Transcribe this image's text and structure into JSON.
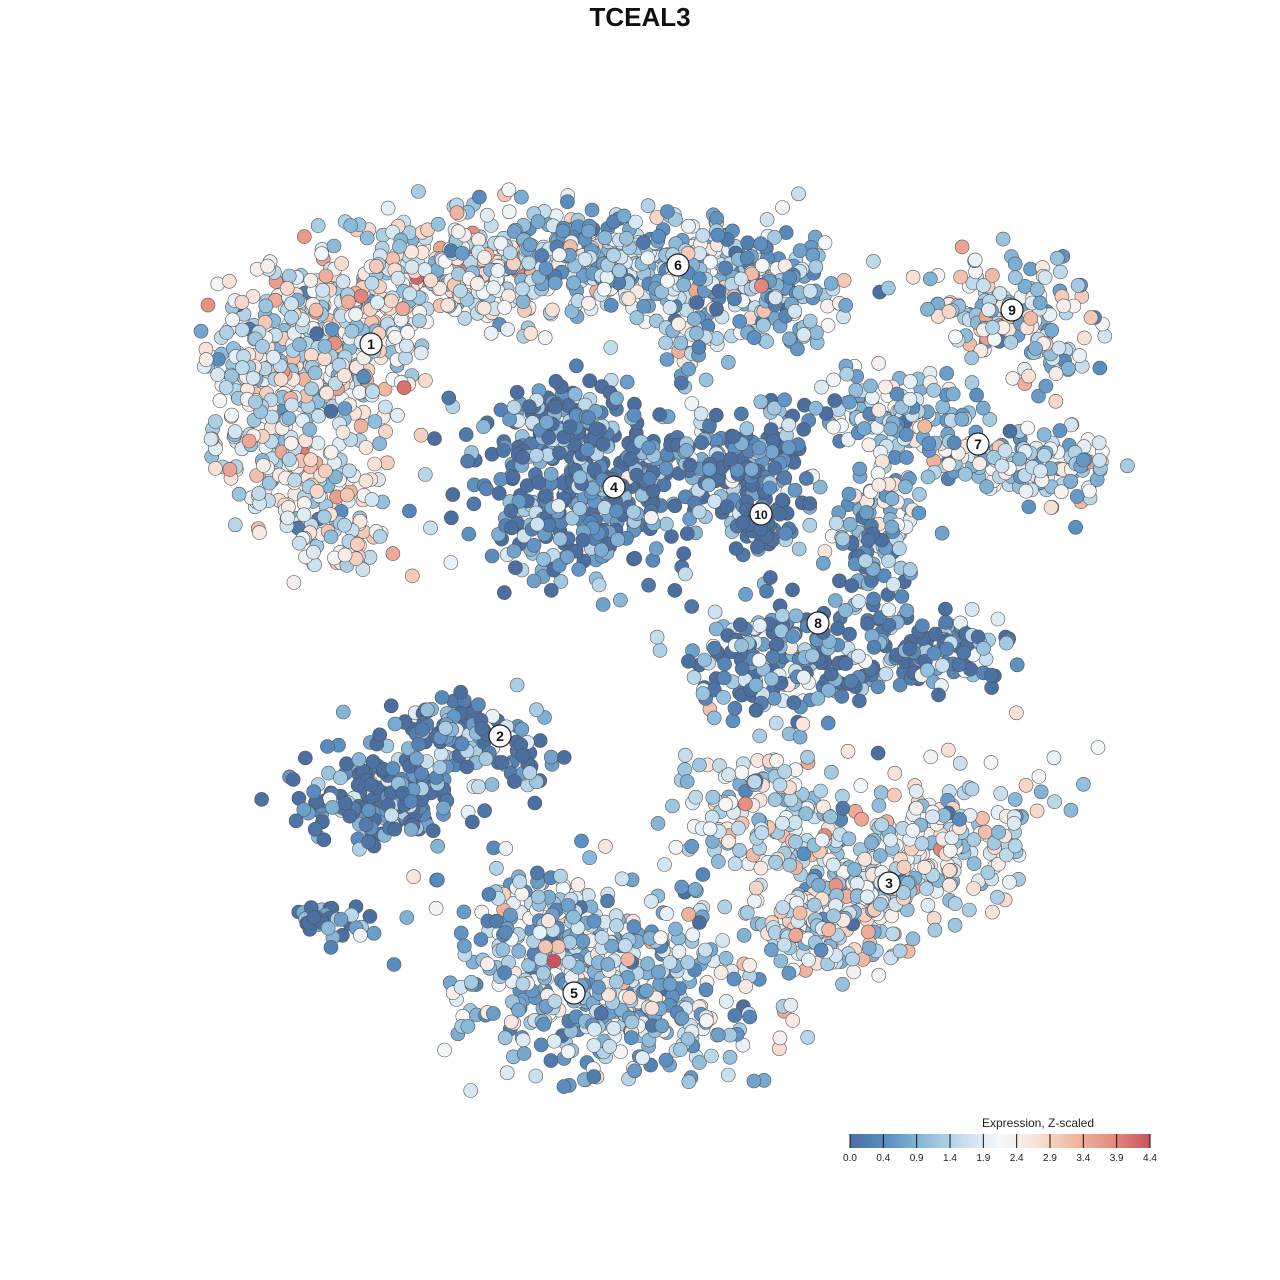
{
  "chart_data": {
    "type": "scatter",
    "title": "TCEAL3",
    "xlabel": "",
    "ylabel": "",
    "grid": false,
    "axes_visible": false,
    "point_color_scale": {
      "label": "Expression, Z-scaled",
      "min": 0.0,
      "max": 4.4,
      "ticks": [
        "0.0",
        "0.4",
        "0.9",
        "1.4",
        "1.9",
        "2.4",
        "2.9",
        "3.4",
        "3.9",
        "4.4"
      ],
      "colors": [
        "#4a6fa0",
        "#5b8fc2",
        "#8dbcda",
        "#c6deee",
        "#f4f8fa",
        "#f9e1d6",
        "#f1b7a0",
        "#e58d80",
        "#c8535f"
      ],
      "legend_placement": "bottom-right"
    },
    "clusters": [
      {
        "id": "1",
        "label": "1",
        "x": 371,
        "y": 344,
        "mean_expression": 2.2
      },
      {
        "id": "2",
        "label": "2",
        "x": 500,
        "y": 736,
        "mean_expression": 0.7
      },
      {
        "id": "3",
        "label": "3",
        "x": 889,
        "y": 883,
        "mean_expression": 2.1
      },
      {
        "id": "4",
        "label": "4",
        "x": 614,
        "y": 487,
        "mean_expression": 0.6
      },
      {
        "id": "5",
        "label": "5",
        "x": 574,
        "y": 993,
        "mean_expression": 1.6
      },
      {
        "id": "6",
        "label": "6",
        "x": 678,
        "y": 265,
        "mean_expression": 1.5
      },
      {
        "id": "7",
        "label": "7",
        "x": 978,
        "y": 444,
        "mean_expression": 1.7
      },
      {
        "id": "8",
        "label": "8",
        "x": 818,
        "y": 623,
        "mean_expression": 0.8
      },
      {
        "id": "9",
        "label": "9",
        "x": 1012,
        "y": 310,
        "mean_expression": 1.9
      },
      {
        "id": "10",
        "label": "10",
        "x": 761,
        "y": 514,
        "mean_expression": 0.5
      }
    ],
    "x_range": [
      200,
      1130
    ],
    "y_range": [
      185,
      1095
    ]
  }
}
